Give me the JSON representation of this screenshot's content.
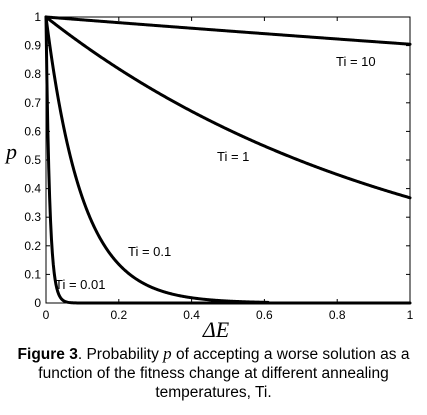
{
  "chart_data": {
    "type": "line",
    "xlabel": "ΔE",
    "ylabel": "p",
    "xlim": [
      0,
      1
    ],
    "ylim": [
      0,
      1
    ],
    "x_ticks": [
      0,
      0.2,
      0.4,
      0.6,
      0.8,
      1
    ],
    "y_ticks": [
      0,
      0.1,
      0.2,
      0.3,
      0.4,
      0.5,
      0.6,
      0.7,
      0.8,
      0.9,
      1
    ],
    "x_tick_labels": [
      "0",
      "0.2",
      "0.4",
      "0.6",
      "0.8",
      "1"
    ],
    "y_tick_labels": [
      "0",
      "0.1",
      "0.2",
      "0.3",
      "0.4",
      "0.5",
      "0.6",
      "0.7",
      "0.8",
      "0.9",
      "1"
    ],
    "grid": false,
    "series": [
      {
        "name": "Ti = 10",
        "ti": 10,
        "x_max": 1,
        "x": [
          0,
          0.2,
          0.4,
          0.6,
          0.8,
          1
        ],
        "values": [
          1,
          0.98,
          0.96,
          0.942,
          0.923,
          0.905
        ]
      },
      {
        "name": "Ti = 1",
        "ti": 1,
        "x_max": 1,
        "x": [
          0,
          0.2,
          0.4,
          0.6,
          0.8,
          1
        ],
        "values": [
          1,
          0.819,
          0.67,
          0.549,
          0.449,
          0.368
        ]
      },
      {
        "name": "Ti = 0.1",
        "ti": 0.1,
        "x_max": 0.61,
        "x": [
          0,
          0.1,
          0.2,
          0.3,
          0.4,
          0.5,
          0.6
        ],
        "values": [
          1,
          0.368,
          0.135,
          0.05,
          0.018,
          0.007,
          0.002
        ]
      },
      {
        "name": "Ti = 0.01",
        "ti": 0.01,
        "x_max": 1,
        "x": [
          0,
          0.01,
          0.02,
          0.03,
          0.05,
          0.1,
          1
        ],
        "values": [
          1,
          0.368,
          0.135,
          0.05,
          0.007,
          0.0,
          0.0
        ]
      }
    ],
    "annotations": [
      "Ti = 10",
      "Ti = 1",
      "Ti = 0.1",
      "Ti = 0.01"
    ]
  },
  "caption": {
    "label": "Figure 3",
    "text_1": ". Probability ",
    "variable": "p",
    "text_2": " of accepting a worse solution as a function of the fitness change at different annealing temperatures, Ti."
  }
}
